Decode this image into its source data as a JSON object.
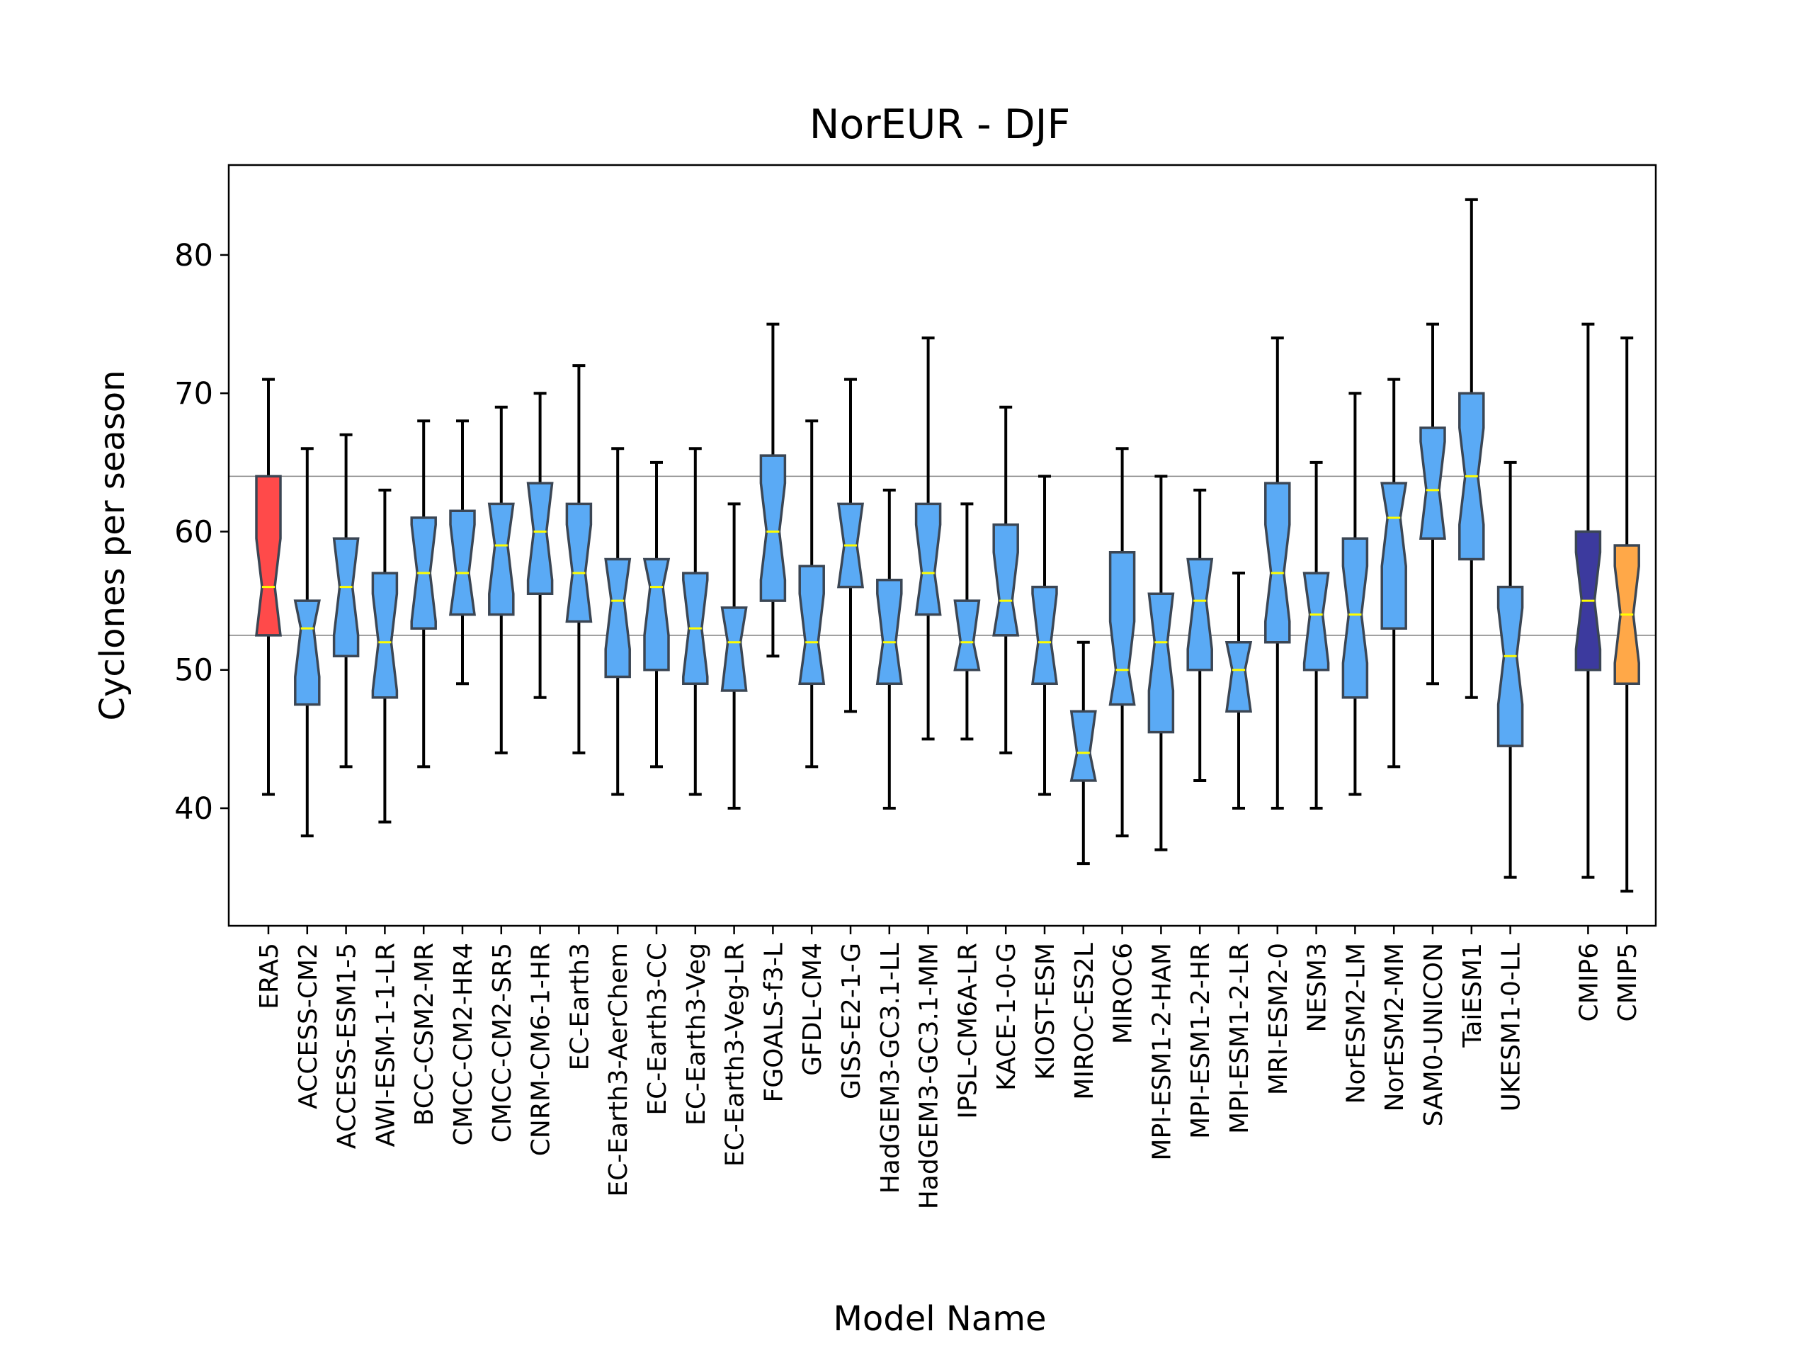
{
  "chart_data": {
    "type": "box",
    "title": "NorEUR - DJF",
    "xlabel": "Model Name",
    "ylabel": "Cyclones per season",
    "ylim": [
      31.5,
      86.5
    ],
    "yticks": [
      40,
      50,
      60,
      70,
      80
    ],
    "reference_lines": [
      64,
      52.5
    ],
    "notched": true,
    "colors": {
      "reanalysis": "#ff4a4a",
      "model": "#5aaaf5",
      "cmip6": "#3c3a9e",
      "cmip5": "#ffa848",
      "median": "#ffff00",
      "edge": "#3b4654",
      "whisker": "#000000",
      "refline": "#888888"
    },
    "boxes": [
      {
        "name": "ERA5",
        "group": "reanalysis",
        "whislo": 41,
        "q1": 52.5,
        "med": 56,
        "q3": 64,
        "whishi": 71
      },
      {
        "name": "ACCESS-CM2",
        "group": "model",
        "whislo": 38,
        "q1": 47.5,
        "med": 53,
        "q3": 55,
        "whishi": 66
      },
      {
        "name": "ACCESS-ESM1-5",
        "group": "model",
        "whislo": 43,
        "q1": 51,
        "med": 56,
        "q3": 59.5,
        "whishi": 67
      },
      {
        "name": "AWI-ESM-1-1-LR",
        "group": "model",
        "whislo": 39,
        "q1": 48,
        "med": 52,
        "q3": 57,
        "whishi": 63
      },
      {
        "name": "BCC-CSM2-MR",
        "group": "model",
        "whislo": 43,
        "q1": 53,
        "med": 57,
        "q3": 61,
        "whishi": 68
      },
      {
        "name": "CMCC-CM2-HR4",
        "group": "model",
        "whislo": 49,
        "q1": 54,
        "med": 57,
        "q3": 61.5,
        "whishi": 68
      },
      {
        "name": "CMCC-CM2-SR5",
        "group": "model",
        "whislo": 44,
        "q1": 54,
        "med": 59,
        "q3": 62,
        "whishi": 69
      },
      {
        "name": "CNRM-CM6-1-HR",
        "group": "model",
        "whislo": 48,
        "q1": 55.5,
        "med": 60,
        "q3": 63.5,
        "whishi": 70
      },
      {
        "name": "EC-Earth3",
        "group": "model",
        "whislo": 44,
        "q1": 53.5,
        "med": 57,
        "q3": 62,
        "whishi": 72
      },
      {
        "name": "EC-Earth3-AerChem",
        "group": "model",
        "whislo": 41,
        "q1": 49.5,
        "med": 55,
        "q3": 58,
        "whishi": 66
      },
      {
        "name": "EC-Earth3-CC",
        "group": "model",
        "whislo": 43,
        "q1": 50,
        "med": 56,
        "q3": 58,
        "whishi": 65
      },
      {
        "name": "EC-Earth3-Veg",
        "group": "model",
        "whislo": 41,
        "q1": 49,
        "med": 53,
        "q3": 57,
        "whishi": 66
      },
      {
        "name": "EC-Earth3-Veg-LR",
        "group": "model",
        "whislo": 40,
        "q1": 48.5,
        "med": 52,
        "q3": 54.5,
        "whishi": 62
      },
      {
        "name": "FGOALS-f3-L",
        "group": "model",
        "whislo": 51,
        "q1": 55,
        "med": 60,
        "q3": 65.5,
        "whishi": 75
      },
      {
        "name": "GFDL-CM4",
        "group": "model",
        "whislo": 43,
        "q1": 49,
        "med": 52,
        "q3": 57.5,
        "whishi": 68
      },
      {
        "name": "GISS-E2-1-G",
        "group": "model",
        "whislo": 47,
        "q1": 56,
        "med": 59,
        "q3": 62,
        "whishi": 71
      },
      {
        "name": "HadGEM3-GC3.1-LL",
        "group": "model",
        "whislo": 40,
        "q1": 49,
        "med": 52,
        "q3": 56.5,
        "whishi": 63
      },
      {
        "name": "HadGEM3-GC3.1-MM",
        "group": "model",
        "whislo": 45,
        "q1": 54,
        "med": 57,
        "q3": 62,
        "whishi": 74
      },
      {
        "name": "IPSL-CM6A-LR",
        "group": "model",
        "whislo": 45,
        "q1": 50,
        "med": 52,
        "q3": 55,
        "whishi": 62
      },
      {
        "name": "KACE-1-0-G",
        "group": "model",
        "whislo": 44,
        "q1": 52.5,
        "med": 55,
        "q3": 60.5,
        "whishi": 69
      },
      {
        "name": "KIOST-ESM",
        "group": "model",
        "whislo": 41,
        "q1": 49,
        "med": 52,
        "q3": 56,
        "whishi": 64
      },
      {
        "name": "MIROC-ES2L",
        "group": "model",
        "whislo": 36,
        "q1": 42,
        "med": 44,
        "q3": 47,
        "whishi": 52
      },
      {
        "name": "MIROC6",
        "group": "model",
        "whislo": 38,
        "q1": 47.5,
        "med": 50,
        "q3": 58.5,
        "whishi": 66
      },
      {
        "name": "MPI-ESM1-2-HAM",
        "group": "model",
        "whislo": 37,
        "q1": 45.5,
        "med": 52,
        "q3": 55.5,
        "whishi": 64
      },
      {
        "name": "MPI-ESM1-2-HR",
        "group": "model",
        "whislo": 42,
        "q1": 50,
        "med": 55,
        "q3": 58,
        "whishi": 63
      },
      {
        "name": "MPI-ESM1-2-LR",
        "group": "model",
        "whislo": 40,
        "q1": 47,
        "med": 50,
        "q3": 52,
        "whishi": 57
      },
      {
        "name": "MRI-ESM2-0",
        "group": "model",
        "whislo": 40,
        "q1": 52,
        "med": 57,
        "q3": 63.5,
        "whishi": 74
      },
      {
        "name": "NESM3",
        "group": "model",
        "whislo": 40,
        "q1": 50,
        "med": 54,
        "q3": 57,
        "whishi": 65
      },
      {
        "name": "NorESM2-LM",
        "group": "model",
        "whislo": 41,
        "q1": 48,
        "med": 54,
        "q3": 59.5,
        "whishi": 70
      },
      {
        "name": "NorESM2-MM",
        "group": "model",
        "whislo": 43,
        "q1": 53,
        "med": 61,
        "q3": 63.5,
        "whishi": 71
      },
      {
        "name": "SAM0-UNICON",
        "group": "model",
        "whislo": 49,
        "q1": 59.5,
        "med": 63,
        "q3": 67.5,
        "whishi": 75
      },
      {
        "name": "TaiESM1",
        "group": "model",
        "whislo": 48,
        "q1": 58,
        "med": 64,
        "q3": 70,
        "whishi": 84
      },
      {
        "name": "UKESM1-0-LL",
        "group": "model",
        "whislo": 35,
        "q1": 44.5,
        "med": 51,
        "q3": 56,
        "whishi": 65
      },
      {
        "name": "CMIP6",
        "group": "cmip6",
        "whislo": 35,
        "q1": 50,
        "med": 55,
        "q3": 60,
        "whishi": 75
      },
      {
        "name": "CMIP5",
        "group": "cmip5",
        "whislo": 34,
        "q1": 49,
        "med": 54,
        "q3": 59,
        "whishi": 74
      }
    ]
  }
}
